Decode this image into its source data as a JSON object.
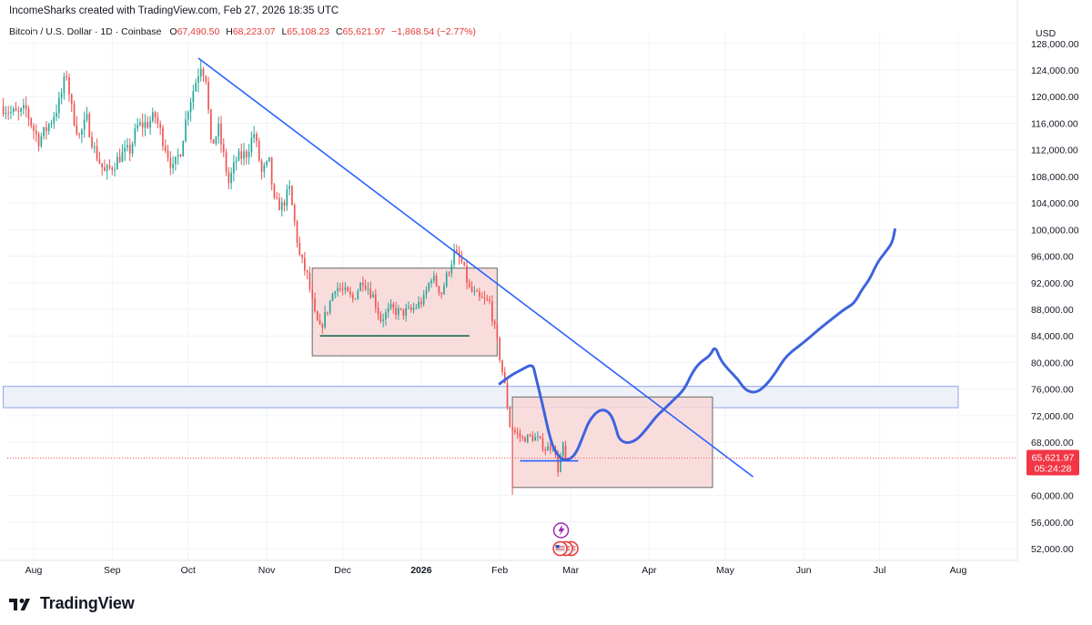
{
  "header": {
    "title": "IncomeSharks created with TradingView.com, Feb 27, 2026 18:35 UTC"
  },
  "symbol": {
    "name": "Bitcoin / U.S. Dollar · 1D · Coinbase",
    "open_label": "O",
    "open": "67,490.50",
    "high_label": "H",
    "high": "68,223.07",
    "low_label": "L",
    "low": "65,108.23",
    "close_label": "C",
    "close": "65,621.97",
    "change": "−1,868.54 (−2.77%)"
  },
  "footer": {
    "logo_text": "TradingView",
    "logo_icon": "tradingview-logo-icon"
  },
  "colors": {
    "up": "#26a69a",
    "down": "#ef5350",
    "trend": "#2962ff",
    "path": "#3d63dd",
    "box": "#f8d7d7",
    "zone": "#eef1f8"
  },
  "chart_data": {
    "type": "candlestick",
    "currency": "USD",
    "ylim": [
      49000,
      129000
    ],
    "y_ticks": [
      {
        "value": 128000,
        "label": "128,000.00"
      },
      {
        "value": 124000,
        "label": "124,000.00"
      },
      {
        "value": 120000,
        "label": "120,000.00"
      },
      {
        "value": 116000,
        "label": "116,000.00"
      },
      {
        "value": 112000,
        "label": "112,000.00"
      },
      {
        "value": 108000,
        "label": "108,000.00"
      },
      {
        "value": 104000,
        "label": "104,000.00"
      },
      {
        "value": 100000,
        "label": "100,000.00"
      },
      {
        "value": 96000,
        "label": "96,000.00"
      },
      {
        "value": 92000,
        "label": "92,000.00"
      },
      {
        "value": 88000,
        "label": "88,000.00"
      },
      {
        "value": 84000,
        "label": "84,000.00"
      },
      {
        "value": 80000,
        "label": "80,000.00"
      },
      {
        "value": 76000,
        "label": "76,000.00"
      },
      {
        "value": 72000,
        "label": "72,000.00"
      },
      {
        "value": 68000,
        "label": "68,000.00"
      },
      {
        "value": 60000,
        "label": "60,000.00"
      },
      {
        "value": 56000,
        "label": "56,000.00"
      },
      {
        "value": 52000,
        "label": "52,000.00"
      }
    ],
    "x_ticks": [
      {
        "date": "2025-08-01",
        "label": "Aug",
        "bold": false
      },
      {
        "date": "2025-09-01",
        "label": "Sep",
        "bold": false
      },
      {
        "date": "2025-10-01",
        "label": "Oct",
        "bold": false
      },
      {
        "date": "2025-11-01",
        "label": "Nov",
        "bold": false
      },
      {
        "date": "2025-12-01",
        "label": "Dec",
        "bold": false
      },
      {
        "date": "2026-01-01",
        "label": "2026",
        "bold": true
      },
      {
        "date": "2026-02-01",
        "label": "Feb",
        "bold": false
      },
      {
        "date": "2026-03-01",
        "label": "Mar",
        "bold": false
      },
      {
        "date": "2026-04-01",
        "label": "Apr",
        "bold": false
      },
      {
        "date": "2026-05-01",
        "label": "May",
        "bold": false
      },
      {
        "date": "2026-06-01",
        "label": "Jun",
        "bold": false
      },
      {
        "date": "2026-07-01",
        "label": "Jul",
        "bold": false
      },
      {
        "date": "2026-08-01",
        "label": "Aug",
        "bold": false
      }
    ],
    "close_series": [
      [
        "2025-07-20",
        118500
      ],
      [
        "2025-07-23",
        117600
      ],
      [
        "2025-07-26",
        117300
      ],
      [
        "2025-07-29",
        118000
      ],
      [
        "2025-08-01",
        115000
      ],
      [
        "2025-08-03",
        113500
      ],
      [
        "2025-08-05",
        114500
      ],
      [
        "2025-08-08",
        116500
      ],
      [
        "2025-08-11",
        119000
      ],
      [
        "2025-08-14",
        123500
      ],
      [
        "2025-08-16",
        118000
      ],
      [
        "2025-08-19",
        114000
      ],
      [
        "2025-08-22",
        116500
      ],
      [
        "2025-08-25",
        112000
      ],
      [
        "2025-08-29",
        108500
      ],
      [
        "2025-09-01",
        109500
      ],
      [
        "2025-09-04",
        111000
      ],
      [
        "2025-09-08",
        112000
      ],
      [
        "2025-09-11",
        115500
      ],
      [
        "2025-09-15",
        116000
      ],
      [
        "2025-09-18",
        117000
      ],
      [
        "2025-09-22",
        112500
      ],
      [
        "2025-09-25",
        109000
      ],
      [
        "2025-09-28",
        112000
      ],
      [
        "2025-10-01",
        118500
      ],
      [
        "2025-10-03",
        121000
      ],
      [
        "2025-10-06",
        125000
      ],
      [
        "2025-10-08",
        123000
      ],
      [
        "2025-10-10",
        112500
      ],
      [
        "2025-10-13",
        115000
      ],
      [
        "2025-10-17",
        107000
      ],
      [
        "2025-10-20",
        110500
      ],
      [
        "2025-10-24",
        111500
      ],
      [
        "2025-10-27",
        114500
      ],
      [
        "2025-10-30",
        108500
      ],
      [
        "2025-11-02",
        110000
      ],
      [
        "2025-11-04",
        104000
      ],
      [
        "2025-11-07",
        103500
      ],
      [
        "2025-11-10",
        106000
      ],
      [
        "2025-11-14",
        96000
      ],
      [
        "2025-11-17",
        93000
      ],
      [
        "2025-11-20",
        87000
      ],
      [
        "2025-11-22",
        85000
      ],
      [
        "2025-11-25",
        88000
      ],
      [
        "2025-11-28",
        91500
      ],
      [
        "2025-12-02",
        90500
      ],
      [
        "2025-12-05",
        89500
      ],
      [
        "2025-12-09",
        92500
      ],
      [
        "2025-12-13",
        90000
      ],
      [
        "2025-12-16",
        86500
      ],
      [
        "2025-12-20",
        88000
      ],
      [
        "2025-12-24",
        87500
      ],
      [
        "2025-12-28",
        87800
      ],
      [
        "2026-01-02",
        89500
      ],
      [
        "2026-01-05",
        93000
      ],
      [
        "2026-01-09",
        90500
      ],
      [
        "2026-01-14",
        96500
      ],
      [
        "2026-01-17",
        95000
      ],
      [
        "2026-01-20",
        91000
      ],
      [
        "2026-01-24",
        89500
      ],
      [
        "2026-01-28",
        89000
      ],
      [
        "2026-01-31",
        83000
      ],
      [
        "2026-02-03",
        76500
      ],
      [
        "2026-02-05",
        70500
      ],
      [
        "2026-02-07",
        69500
      ],
      [
        "2026-02-10",
        68500
      ],
      [
        "2026-02-13",
        68800
      ],
      [
        "2026-02-16",
        68500
      ],
      [
        "2026-02-19",
        67000
      ],
      [
        "2026-02-22",
        67500
      ],
      [
        "2026-02-24",
        64000
      ],
      [
        "2026-02-26",
        67490
      ],
      [
        "2026-02-27",
        65622
      ]
    ],
    "last_price": {
      "value": 65621.97,
      "label": "65,621.97",
      "countdown": "05:24:28"
    },
    "trendline": [
      [
        "2025-10-05",
        125800
      ],
      [
        "2026-05-12",
        62800
      ]
    ],
    "consolidation_boxes": [
      {
        "from": "2025-11-19",
        "to": "2026-01-31",
        "low": 81000,
        "high": 94200
      },
      {
        "from": "2026-02-06",
        "to": "2026-04-26",
        "low": 61200,
        "high": 74800
      }
    ],
    "support_zone": {
      "from": "2025-07-20",
      "to": "2026-08-01",
      "low": 73200,
      "high": 76400
    },
    "horizontal_lines": [
      {
        "from": "2025-11-22",
        "to": "2026-01-20",
        "value": 84000,
        "color": "#1b6b52"
      },
      {
        "from": "2026-02-09",
        "to": "2026-03-04",
        "value": 65200,
        "color": "#2962ff"
      }
    ],
    "projection_path": [
      [
        "2026-02-01",
        76800
      ],
      [
        "2026-02-05",
        78000
      ],
      [
        "2026-02-10",
        79000
      ],
      [
        "2026-02-14",
        79800
      ],
      [
        "2026-02-15",
        78200
      ],
      [
        "2026-02-18",
        73500
      ],
      [
        "2026-02-20",
        70000
      ],
      [
        "2026-02-22",
        67200
      ],
      [
        "2026-02-25",
        65500
      ],
      [
        "2026-02-28",
        65300
      ],
      [
        "2026-03-03",
        66200
      ],
      [
        "2026-03-06",
        69000
      ],
      [
        "2026-03-08",
        71000
      ],
      [
        "2026-03-11",
        72500
      ],
      [
        "2026-03-14",
        73000
      ],
      [
        "2026-03-17",
        72200
      ],
      [
        "2026-03-19",
        70000
      ],
      [
        "2026-03-20",
        68500
      ],
      [
        "2026-03-23",
        67800
      ],
      [
        "2026-03-27",
        68300
      ],
      [
        "2026-03-31",
        70000
      ],
      [
        "2026-04-04",
        72000
      ],
      [
        "2026-04-07",
        73000
      ],
      [
        "2026-04-11",
        74500
      ],
      [
        "2026-04-15",
        76000
      ],
      [
        "2026-04-18",
        78500
      ],
      [
        "2026-04-21",
        80000
      ],
      [
        "2026-04-25",
        81000
      ],
      [
        "2026-04-27",
        82500
      ],
      [
        "2026-04-29",
        80500
      ],
      [
        "2026-05-02",
        79000
      ],
      [
        "2026-05-06",
        77500
      ],
      [
        "2026-05-09",
        75800
      ],
      [
        "2026-05-13",
        75400
      ],
      [
        "2026-05-17",
        76500
      ],
      [
        "2026-05-21",
        78500
      ],
      [
        "2026-05-25",
        81000
      ],
      [
        "2026-06-01",
        83000
      ],
      [
        "2026-06-07",
        85000
      ],
      [
        "2026-06-12",
        86500
      ],
      [
        "2026-06-17",
        88000
      ],
      [
        "2026-06-21",
        88900
      ],
      [
        "2026-06-24",
        91000
      ],
      [
        "2026-06-27",
        92500
      ],
      [
        "2026-06-30",
        95000
      ],
      [
        "2026-07-03",
        96500
      ],
      [
        "2026-07-06",
        98000
      ],
      [
        "2026-07-07",
        100000
      ]
    ],
    "event_markers": [
      {
        "date": "2026-02-27",
        "icon": "lightning-icon"
      },
      {
        "date": "2026-02-27",
        "icon": "us-flag-icon"
      }
    ]
  }
}
